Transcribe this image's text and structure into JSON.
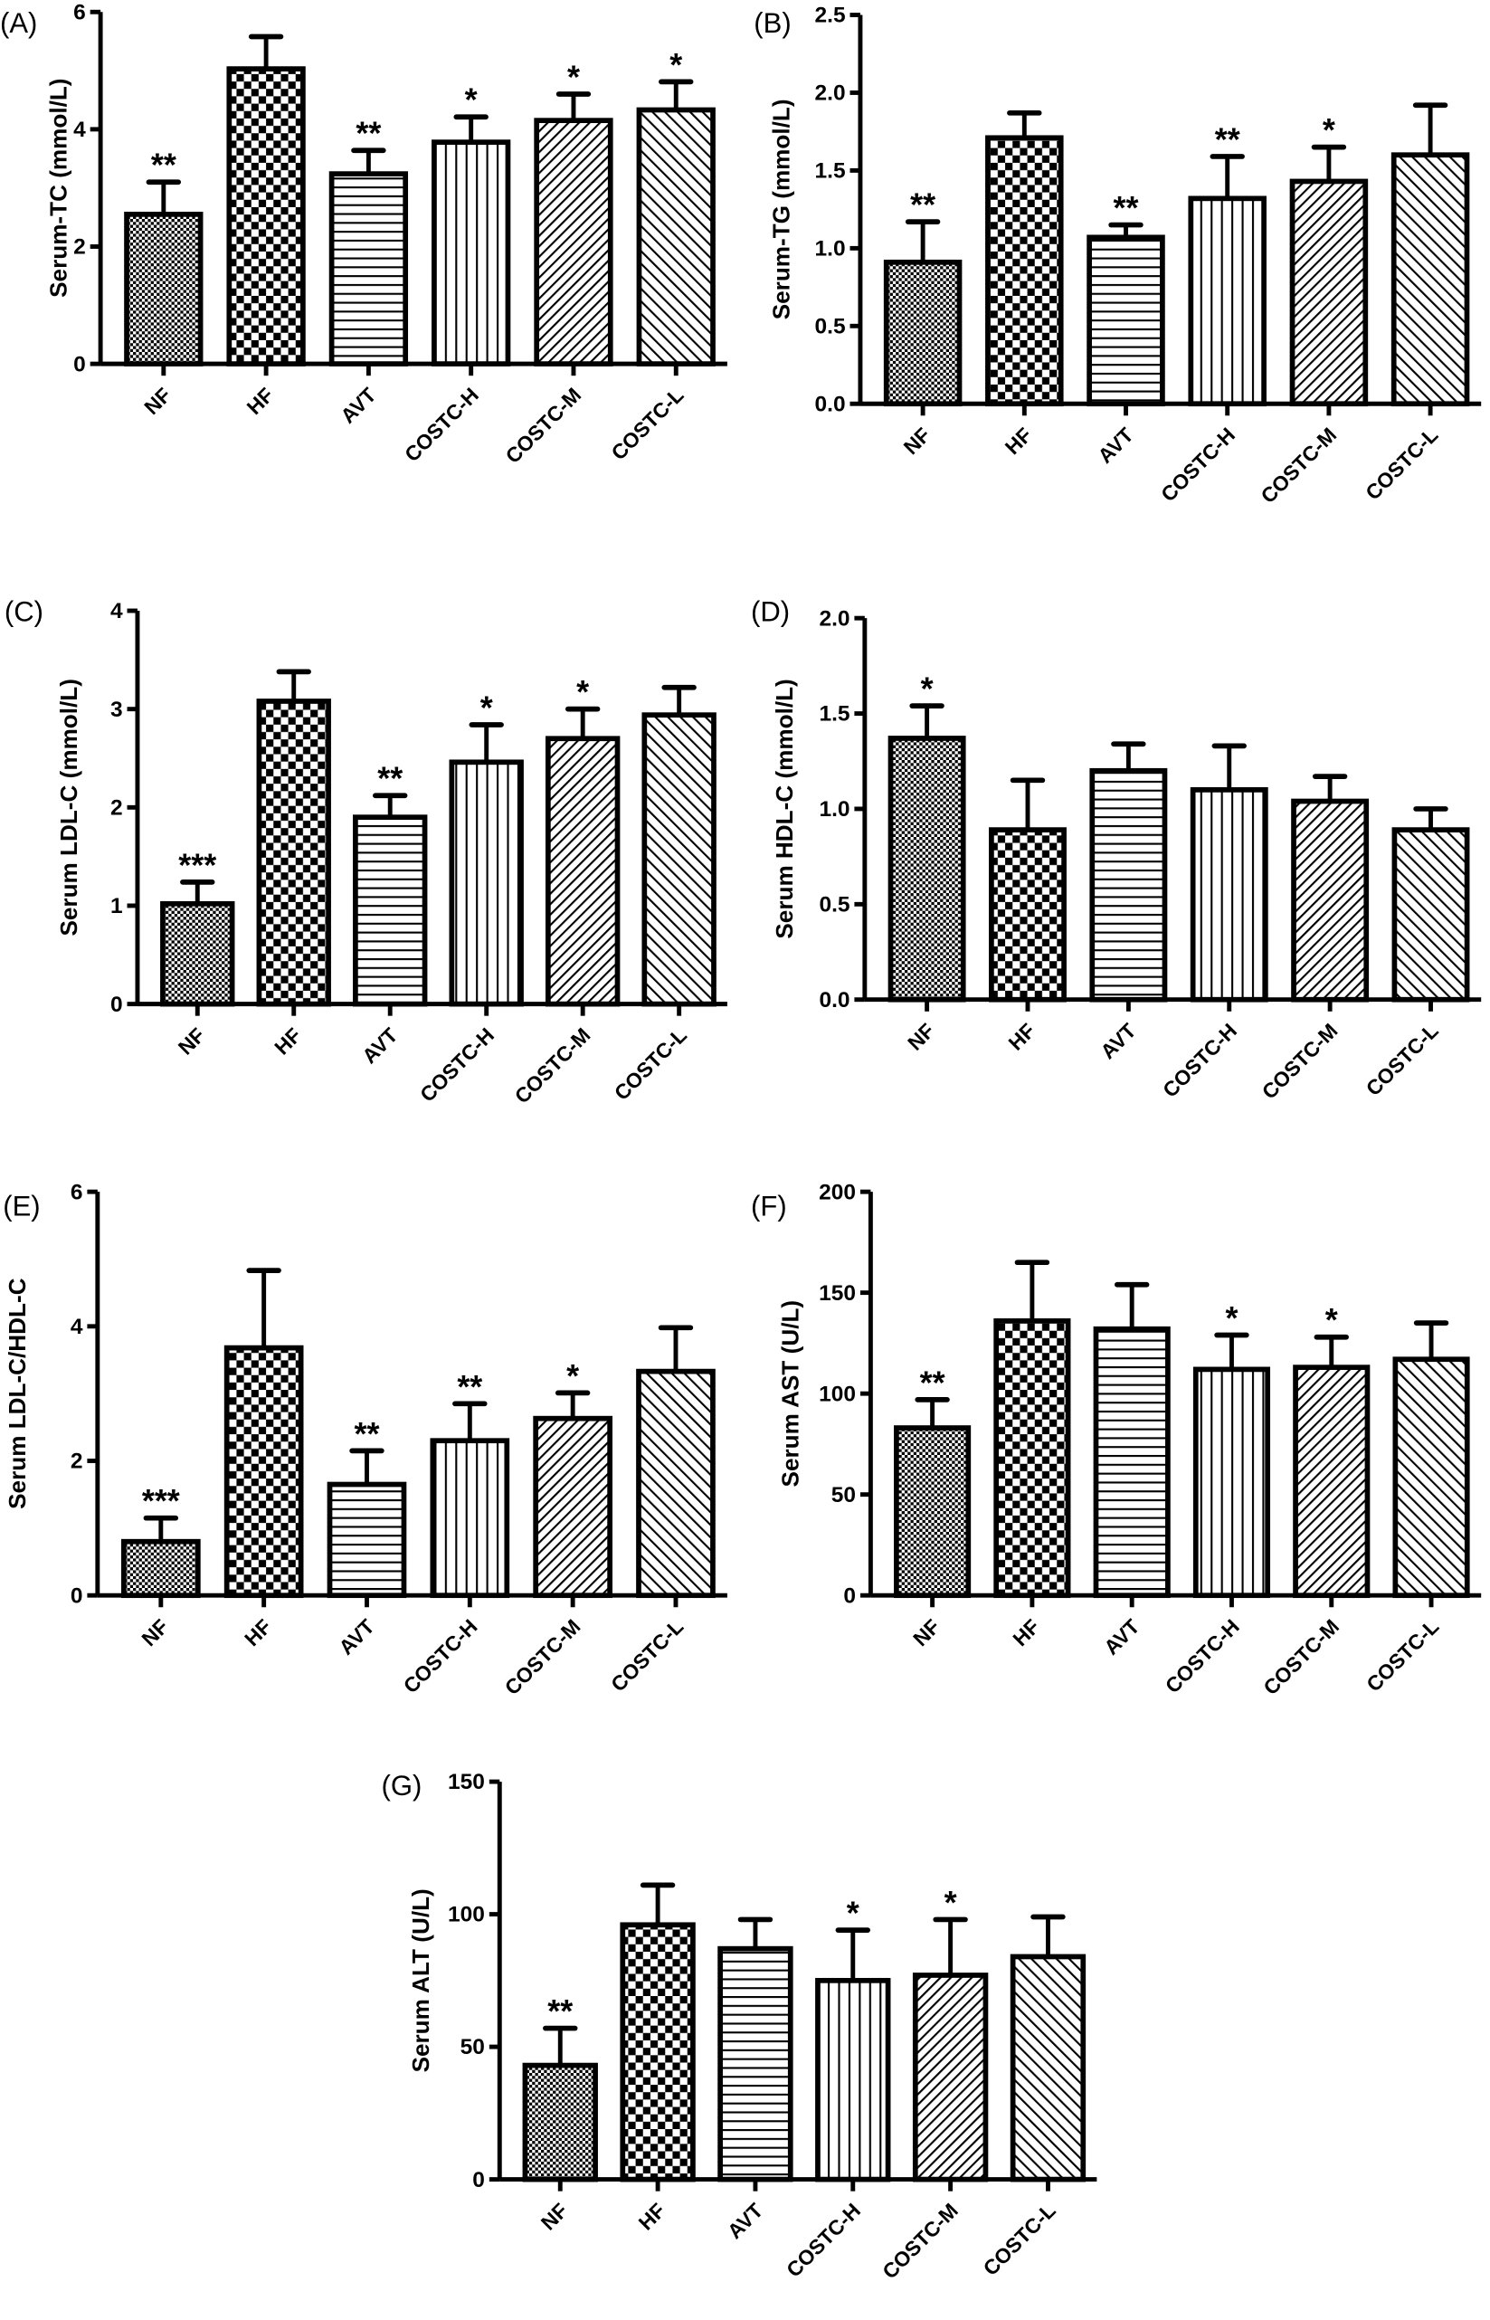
{
  "chart_data": [
    {
      "type": "bar",
      "panel_label": "(A)",
      "ylabel": "Serum-TC (mmol/L)",
      "ylim": [
        0,
        6
      ],
      "yticks": [
        "0",
        "2",
        "4",
        "6"
      ],
      "categories": [
        "NF",
        "HF",
        "AVT",
        "COSTC-H",
        "COSTC-M",
        "COSTC-L"
      ],
      "values": [
        2.55,
        5.03,
        3.24,
        3.78,
        4.15,
        4.33
      ],
      "errors": [
        0.55,
        0.55,
        0.4,
        0.43,
        0.45,
        0.48
      ],
      "significance": [
        "**",
        "",
        "**",
        "*",
        "*",
        "*"
      ]
    },
    {
      "type": "bar",
      "panel_label": "(B)",
      "ylabel": "Serum-TG (mmol/L)",
      "ylim": [
        0,
        2.5
      ],
      "yticks": [
        "0.0",
        "0.5",
        "1.0",
        "1.5",
        "2.0",
        "2.5"
      ],
      "categories": [
        "NF",
        "HF",
        "AVT",
        "COSTC-H",
        "COSTC-M",
        "COSTC-L"
      ],
      "values": [
        0.91,
        1.71,
        1.07,
        1.32,
        1.43,
        1.6
      ],
      "errors": [
        0.26,
        0.16,
        0.08,
        0.27,
        0.22,
        0.32
      ],
      "significance": [
        "**",
        "",
        "**",
        "**",
        "*",
        ""
      ]
    },
    {
      "type": "bar",
      "panel_label": "(C)",
      "ylabel": "Serum LDL-C (mmol/L)",
      "ylim": [
        0,
        4
      ],
      "yticks": [
        "0",
        "1",
        "2",
        "3",
        "4"
      ],
      "categories": [
        "NF",
        "HF",
        "AVT",
        "COSTC-H",
        "COSTC-M",
        "COSTC-L"
      ],
      "values": [
        1.02,
        3.08,
        1.9,
        2.46,
        2.7,
        2.94
      ],
      "errors": [
        0.22,
        0.3,
        0.22,
        0.38,
        0.3,
        0.28
      ],
      "significance": [
        "***",
        "",
        "**",
        "*",
        "*",
        ""
      ]
    },
    {
      "type": "bar",
      "panel_label": "(D)",
      "ylabel": "Serum HDL-C (mmol/L)",
      "ylim": [
        0,
        2
      ],
      "yticks": [
        "0.0",
        "0.5",
        "1.0",
        "1.5",
        "2.0"
      ],
      "categories": [
        "NF",
        "HF",
        "AVT",
        "COSTC-H",
        "COSTC-M",
        "COSTC-L"
      ],
      "values": [
        1.37,
        0.89,
        1.2,
        1.1,
        1.04,
        0.89
      ],
      "errors": [
        0.17,
        0.26,
        0.14,
        0.23,
        0.13,
        0.11
      ],
      "significance": [
        "*",
        "",
        "",
        "",
        "",
        ""
      ]
    },
    {
      "type": "bar",
      "panel_label": "(E)",
      "ylabel": "Serum LDL-C/HDL-C",
      "ylim": [
        0,
        6
      ],
      "yticks": [
        "0",
        "2",
        "4",
        "6"
      ],
      "categories": [
        "NF",
        "HF",
        "AVT",
        "COSTC-H",
        "COSTC-M",
        "COSTC-L"
      ],
      "values": [
        0.8,
        3.68,
        1.65,
        2.3,
        2.63,
        3.33
      ],
      "errors": [
        0.35,
        1.15,
        0.5,
        0.55,
        0.38,
        0.65
      ],
      "significance": [
        "***",
        "",
        "**",
        "**",
        "*",
        ""
      ]
    },
    {
      "type": "bar",
      "panel_label": "(F)",
      "ylabel": "Serum AST (U/L)",
      "ylim": [
        0,
        200
      ],
      "yticks": [
        "0",
        "50",
        "100",
        "150",
        "200"
      ],
      "categories": [
        "NF",
        "HF",
        "AVT",
        "COSTC-H",
        "COSTC-M",
        "COSTC-L"
      ],
      "values": [
        83,
        136,
        132,
        112,
        113,
        117
      ],
      "errors": [
        14,
        29,
        22,
        17,
        15,
        18
      ],
      "significance": [
        "**",
        "",
        "",
        "*",
        "*",
        ""
      ]
    },
    {
      "type": "bar",
      "panel_label": "(G)",
      "ylabel": "Serum ALT (U/L)",
      "ylim": [
        0,
        150
      ],
      "yticks": [
        "0",
        "50",
        "100",
        "150"
      ],
      "categories": [
        "NF",
        "HF",
        "AVT",
        "COSTC-H",
        "COSTC-M",
        "COSTC-L"
      ],
      "values": [
        43,
        96,
        87,
        75,
        77,
        84
      ],
      "errors": [
        14,
        15,
        11,
        19,
        21,
        15
      ],
      "significance": [
        "**",
        "",
        "",
        "*",
        "*",
        ""
      ]
    }
  ]
}
